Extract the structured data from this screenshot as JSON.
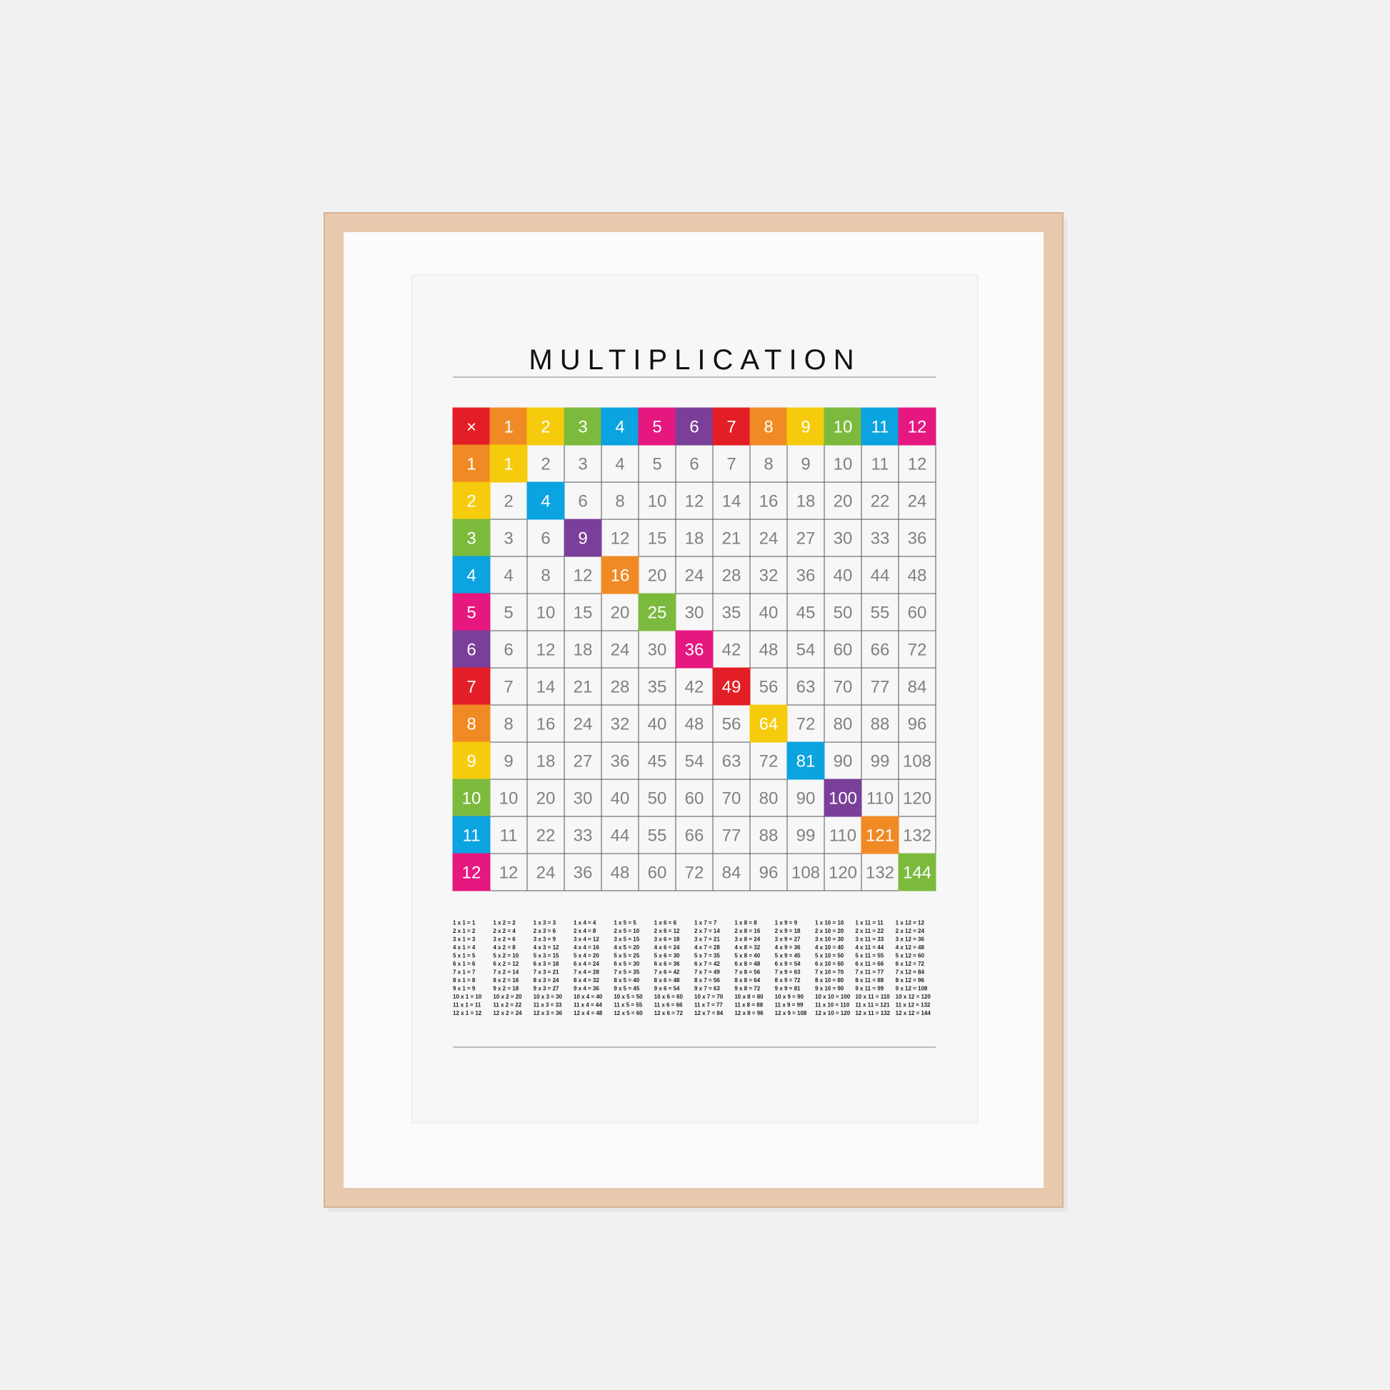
{
  "title": "MULTIPLICATION",
  "palette": [
    "#e41e26",
    "#f08a24",
    "#f5cb0c",
    "#7cba3e",
    "#0ba3e0",
    "#e6177f",
    "#7a3f98"
  ],
  "table": {
    "header": [
      "×",
      1,
      2,
      3,
      4,
      5,
      6,
      7,
      8,
      9,
      10,
      11,
      12
    ],
    "rows": [
      [
        1,
        1,
        2,
        3,
        4,
        5,
        6,
        7,
        8,
        9,
        10,
        11,
        12
      ],
      [
        2,
        2,
        4,
        6,
        8,
        10,
        12,
        14,
        16,
        18,
        20,
        22,
        24
      ],
      [
        3,
        3,
        6,
        9,
        12,
        15,
        18,
        21,
        24,
        27,
        30,
        33,
        36
      ],
      [
        4,
        4,
        8,
        12,
        16,
        20,
        24,
        28,
        32,
        36,
        40,
        44,
        48
      ],
      [
        5,
        5,
        10,
        15,
        20,
        25,
        30,
        35,
        40,
        45,
        50,
        55,
        60
      ],
      [
        6,
        6,
        12,
        18,
        24,
        30,
        36,
        42,
        48,
        54,
        60,
        66,
        72
      ],
      [
        7,
        7,
        14,
        21,
        28,
        35,
        42,
        49,
        56,
        63,
        70,
        77,
        84
      ],
      [
        8,
        8,
        16,
        24,
        32,
        40,
        48,
        56,
        64,
        72,
        80,
        88,
        96
      ],
      [
        9,
        9,
        18,
        27,
        36,
        45,
        54,
        63,
        72,
        81,
        90,
        99,
        108
      ],
      [
        10,
        10,
        20,
        30,
        40,
        50,
        60,
        70,
        80,
        90,
        100,
        110,
        120
      ],
      [
        11,
        11,
        22,
        33,
        44,
        55,
        66,
        77,
        88,
        99,
        110,
        121,
        132
      ],
      [
        12,
        12,
        24,
        36,
        48,
        60,
        72,
        84,
        96,
        108,
        120,
        132,
        144
      ]
    ]
  },
  "facts": [
    [
      "1 x 1 = 1",
      "2 x 1 = 2",
      "3 x 1 = 3",
      "4 x 1 = 4",
      "5 x 1 = 5",
      "6 x 1 = 6",
      "7 x 1 = 7",
      "8 x 1 = 8",
      "9 x 1 = 9",
      "10 x 1 = 10",
      "11 x 1 = 11",
      "12 x 1 = 12"
    ],
    [
      "1 x 2 = 2",
      "2 x 2 = 4",
      "3 x 2 = 6",
      "4 x 2 = 8",
      "5 x 2 = 10",
      "6 x 2 = 12",
      "7 x 2 = 14",
      "8 x 2 = 16",
      "9 x 2 = 18",
      "10 x 2 = 20",
      "11 x 2 = 22",
      "12 x 2 = 24"
    ],
    [
      "1 x 3 = 3",
      "2 x 3 = 6",
      "3 x 3 = 9",
      "4 x 3 = 12",
      "5 x 3 = 15",
      "6 x 3 = 18",
      "7 x 3 = 21",
      "8 x 3 = 24",
      "9 x 3 = 27",
      "10 x 3 = 30",
      "11 x 3 = 33",
      "12 x 3 = 36"
    ],
    [
      "1 x 4 = 4",
      "2 x 4 = 8",
      "3 x 4 = 12",
      "4 x 4 = 16",
      "5 x 4 = 20",
      "6 x 4 = 24",
      "7 x 4 = 28",
      "8 x 4 = 32",
      "9 x 4 = 36",
      "10 x 4 = 40",
      "11 x 4 = 44",
      "12 x 4 = 48"
    ],
    [
      "1 x 5 = 5",
      "2 x 5 = 10",
      "3 x 5 = 15",
      "4 x 5 = 20",
      "5 x 5 = 25",
      "6 x 5 = 30",
      "7 x 5 = 35",
      "8 x 5 = 40",
      "9 x 5 = 45",
      "10 x 5 = 50",
      "11 x 5 = 55",
      "12 x 5 = 60"
    ],
    [
      "1 x 6 = 6",
      "2 x 6 = 12",
      "3 x 6 = 18",
      "4 x 6 = 24",
      "5 x 6 = 30",
      "6 x 6 = 36",
      "7 x 6 = 42",
      "8 x 6 = 48",
      "9 x 6 = 54",
      "10 x 6 = 60",
      "11 x 6 = 66",
      "12 x 6 = 72"
    ],
    [
      "1 x 7 = 7",
      "2 x 7 = 14",
      "3 x 7 = 21",
      "4 x 7 = 28",
      "5 x 7 = 35",
      "6 x 7 = 42",
      "7 x 7 = 49",
      "8 x 7 = 56",
      "9 x 7 = 63",
      "10 x 7 = 70",
      "11 x 7 = 77",
      "12 x 7 = 84"
    ],
    [
      "1 x 8 = 8",
      "2 x 8 = 16",
      "3 x 8 = 24",
      "4 x 8 = 32",
      "5 x 8 = 40",
      "6 x 8 = 48",
      "7 x 8 = 56",
      "8 x 8 = 64",
      "9 x 8 = 72",
      "10 x 8 = 80",
      "11 x 8 = 88",
      "12 x 8 = 96"
    ],
    [
      "1 x 9 = 9",
      "2 x 9 = 18",
      "3 x 9 = 27",
      "4 x 9 = 36",
      "5 x 9 = 45",
      "6 x 9 = 54",
      "7 x 9 = 63",
      "8 x 9 = 72",
      "9 x 9 = 81",
      "10 x 9 = 90",
      "11 x 9 = 99",
      "12 x 9 = 108"
    ],
    [
      "1 x 10 = 10",
      "2 x 10 = 20",
      "3 x 10 = 30",
      "4 x 10 = 40",
      "5 x 10 = 50",
      "6 x 10 = 60",
      "7 x 10 = 70",
      "8 x 10 = 80",
      "9 x 10 = 90",
      "10 x 10 = 100",
      "11 x 10 = 110",
      "12 x 10 = 120"
    ],
    [
      "1 x 11 = 11",
      "2 x 11 = 22",
      "3 x 11 = 33",
      "4 x 11 = 44",
      "5 x 11 = 55",
      "6 x 11 = 66",
      "7 x 11 = 77",
      "8 x 11 = 88",
      "9 x 11 = 99",
      "10 x 11 = 110",
      "11 x 11 = 121",
      "12 x 11 = 132"
    ],
    [
      "1 x 12 = 12",
      "2 x 12 = 24",
      "3 x 12 = 36",
      "4 x 12 = 48",
      "5 x 12 = 60",
      "6 x 12 = 72",
      "7 x 12 = 84",
      "8 x 12 = 96",
      "9 x 12 = 108",
      "10 x 12 = 120",
      "11 x 12 = 132",
      "12 x 12 = 144"
    ]
  ]
}
